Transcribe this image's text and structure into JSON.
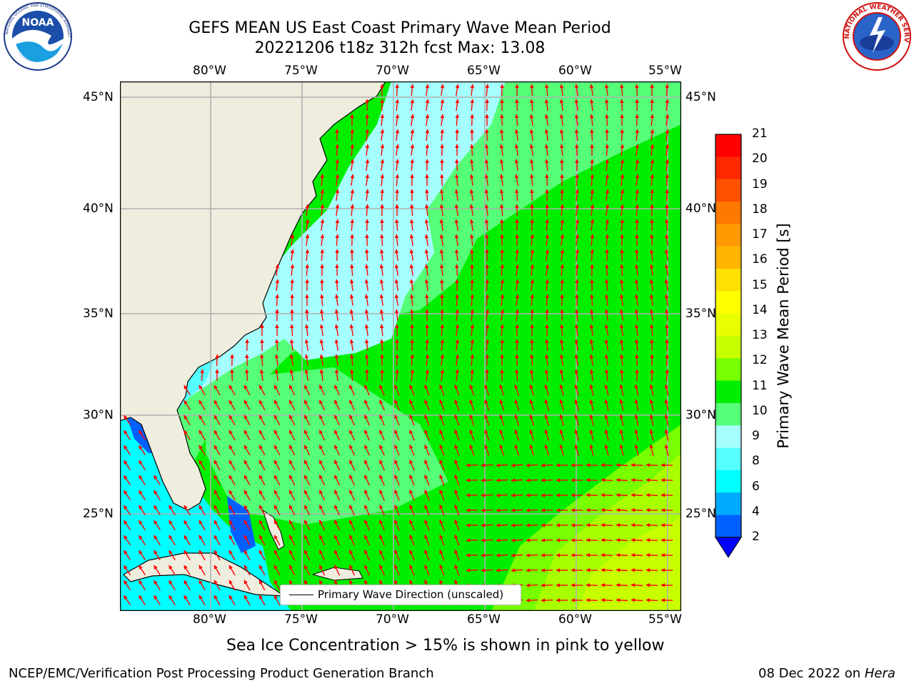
{
  "header": {
    "title_line1": "GEFS MEAN US East Coast Primary Wave Mean Period",
    "title_line2": "20221206 t18z 312h fcst   Max: 13.08"
  },
  "logos": {
    "left": "NOAA",
    "left_ring_text": "NATIONAL OCEANIC AND ATMOSPHERIC ADMINISTRATION · U.S. DEPARTMENT OF COMMERCE",
    "right_ring_text": "NATIONAL WEATHER SERVICE"
  },
  "map": {
    "lon_labels": [
      "80°W",
      "75°W",
      "70°W",
      "65°W",
      "60°W",
      "55°W"
    ],
    "lat_labels": [
      "45°N",
      "40°N",
      "35°N",
      "30°N",
      "25°N"
    ],
    "legend_text": "Primary Wave Direction (unscaled)",
    "colors": {
      "land": "#efedde",
      "grid": "#b0b0b0",
      "arrow": "#ff0000"
    }
  },
  "colorbar": {
    "label": "Primary Wave Mean Period [s]",
    "ticks": [
      "21",
      "20",
      "19",
      "18",
      "17",
      "16",
      "15",
      "14",
      "13",
      "12",
      "11",
      "10",
      "9",
      "8",
      "6",
      "4",
      "2"
    ],
    "colors_top_to_bottom": [
      "#ff0000",
      "#ff2800",
      "#ff5000",
      "#ff7800",
      "#ff9a00",
      "#ffb400",
      "#ffe000",
      "#ffff00",
      "#e8ff00",
      "#c8ff00",
      "#78ff00",
      "#00ee00",
      "#55ff77",
      "#a6ffff",
      "#55ffff",
      "#00ffff",
      "#00aaff",
      "#0060ff"
    ],
    "extend_color": "#0000ff"
  },
  "footer": {
    "note": "Sea Ice Concentration > 15% is shown in pink to yellow",
    "left": "NCEP/EMC/Verification Post Processing Product Generation Branch",
    "right_date": "08 Dec 2022 on ",
    "right_host": "Hera"
  }
}
